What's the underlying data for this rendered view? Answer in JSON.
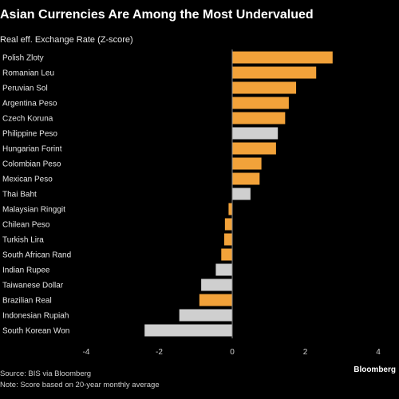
{
  "title": "Asian Currencies Are Among the Most Undervalued",
  "subtitle": "Real eff. Exchange Rate (Z-score)",
  "footer": {
    "source": "Source: BIS via Bloomberg",
    "note": "Note: Score based on 20-year monthly average",
    "brand": "Bloomberg"
  },
  "colors": {
    "orange": "#f2a23a",
    "grey": "#cfcfcf",
    "background": "#000000"
  },
  "chart_data": {
    "type": "bar",
    "orientation": "horizontal",
    "categories": [
      "Polish Zloty",
      "Romanian Leu",
      "Peruvian Sol",
      "Argentina Peso",
      "Czech Koruna",
      "Philippine Peso",
      "Hungarian Forint",
      "Colombian Peso",
      "Mexican Peso",
      "Thai Baht",
      "Malaysian Ringgit",
      "Chilean Peso",
      "Turkish Lira",
      "South African Rand",
      "Indian Rupee",
      "Taiwanese Dollar",
      "Brazilian Real",
      "Indonesian Rupiah",
      "South Korean Won"
    ],
    "values": [
      2.75,
      2.3,
      1.75,
      1.55,
      1.45,
      1.25,
      1.2,
      0.8,
      0.75,
      0.5,
      -0.1,
      -0.2,
      -0.22,
      -0.3,
      -0.45,
      -0.85,
      -0.9,
      -1.45,
      -2.4
    ],
    "highlight": [
      false,
      false,
      false,
      false,
      false,
      true,
      false,
      false,
      false,
      true,
      false,
      false,
      false,
      false,
      true,
      true,
      false,
      true,
      true
    ],
    "xlim": [
      -4,
      4
    ],
    "xticks": [
      "-4",
      "-2",
      "0",
      "2",
      "4"
    ],
    "grid": false,
    "legend": "none"
  }
}
